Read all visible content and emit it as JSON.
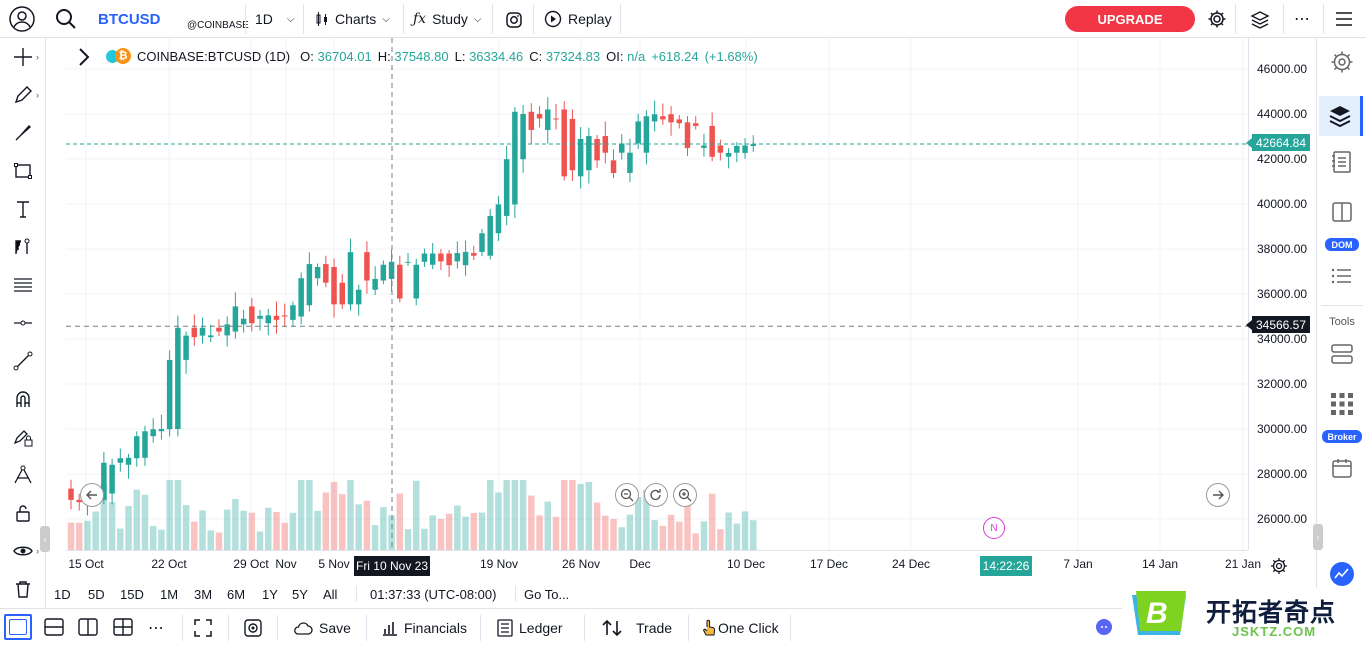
{
  "topbar": {
    "symbol": "BTCUSD",
    "exchange": "@COINBASE",
    "interval": "1D",
    "charts_label": "Charts",
    "study_label": "Study",
    "replay_label": "Replay",
    "upgrade_label": "UPGRADE"
  },
  "legend": {
    "symbol_full": "COINBASE:BTCUSD (1D)",
    "o_label": "O:",
    "o_value": "36704.01",
    "h_label": "H:",
    "h_value": "37548.80",
    "l_label": "L:",
    "l_value": "36334.46",
    "c_label": "C:",
    "c_value": "37324.83",
    "oi_label": "OI:",
    "oi_value": "n/a",
    "change": "+618.24",
    "change_pct": "(+1.68%)"
  },
  "price_axis": {
    "ticks": [
      "46000.00",
      "44000.00",
      "42000.00",
      "40000.00",
      "38000.00",
      "36000.00",
      "34000.00",
      "32000.00",
      "30000.00",
      "28000.00",
      "26000.00"
    ],
    "last_price": "42664.84",
    "crosshair_price": "34566.57"
  },
  "time_axis": {
    "ticks": [
      "15 Oct",
      "22 Oct",
      "29 Oct",
      "Nov",
      "5 Nov",
      "19 Nov",
      "26 Nov",
      "Dec",
      "10 Dec",
      "17 Dec",
      "24 Dec",
      "7 Jan",
      "14 Jan",
      "21 Jan"
    ],
    "crosshair_date": "Fri 10 Nov 23",
    "countdown": "14:22:26"
  },
  "right_sidebar": {
    "dom_badge": "DOM",
    "tools_label": "Tools",
    "broker_badge": "Broker"
  },
  "range_bar": {
    "ranges": [
      "1D",
      "5D",
      "15D",
      "1M",
      "3M",
      "6M",
      "1Y",
      "5Y",
      "All"
    ],
    "clock": "01:37:33 (UTC-08:00)",
    "goto": "Go To..."
  },
  "bottom_bar": {
    "save": "Save",
    "financials": "Financials",
    "ledger": "Ledger",
    "trade": "Trade",
    "one_click": "One Click"
  },
  "watermark": {
    "brand": "开拓者奇点",
    "domain": "JSKTZ.COM"
  },
  "colors": {
    "up": "#26a69a",
    "down": "#ef5350",
    "accent": "#2962ff",
    "upgrade": "#f23645"
  },
  "chart_data": {
    "type": "candlestick",
    "symbol": "COINBASE:BTCUSD",
    "interval": "1D",
    "ylim": [
      25000,
      47000
    ],
    "dates": [
      "2023-10-11",
      "2023-10-12",
      "2023-10-13",
      "2023-10-14",
      "2023-10-15",
      "2023-10-16",
      "2023-10-17",
      "2023-10-18",
      "2023-10-19",
      "2023-10-20",
      "2023-10-21",
      "2023-10-22",
      "2023-10-23",
      "2023-10-24",
      "2023-10-25",
      "2023-10-26",
      "2023-10-27",
      "2023-10-28",
      "2023-10-29",
      "2023-10-30",
      "2023-10-31",
      "2023-11-01",
      "2023-11-02",
      "2023-11-03",
      "2023-11-04",
      "2023-11-05",
      "2023-11-06",
      "2023-11-07",
      "2023-11-08",
      "2023-11-09",
      "2023-11-10",
      "2023-11-11",
      "2023-11-12",
      "2023-11-13",
      "2023-11-14",
      "2023-11-15",
      "2023-11-16",
      "2023-11-17",
      "2023-11-18",
      "2023-11-19",
      "2023-11-20",
      "2023-11-21",
      "2023-11-22",
      "2023-11-23",
      "2023-11-24",
      "2023-11-25",
      "2023-11-26",
      "2023-11-27",
      "2023-11-28",
      "2023-11-29",
      "2023-11-30",
      "2023-12-01",
      "2023-12-02",
      "2023-12-03",
      "2023-12-04",
      "2023-12-05",
      "2023-12-06",
      "2023-12-07",
      "2023-12-08",
      "2023-12-09",
      "2023-12-10",
      "2023-12-11",
      "2023-12-12",
      "2023-12-13",
      "2023-12-14",
      "2023-12-15",
      "2023-12-16",
      "2023-12-17",
      "2023-12-18",
      "2023-12-19",
      "2023-12-20",
      "2023-12-21",
      "2023-12-22",
      "2023-12-23",
      "2023-12-24",
      "2023-12-25",
      "2023-12-26",
      "2023-12-27",
      "2023-12-28",
      "2023-12-29",
      "2023-12-30",
      "2023-12-31",
      "2024-01-01",
      "2024-01-02"
    ],
    "open": [
      27350,
      26850,
      26750,
      26850,
      26850,
      27130,
      28500,
      28410,
      28700,
      28720,
      29680,
      29900,
      29990,
      30000,
      33070,
      34500,
      34150,
      34080,
      34500,
      34160,
      34330,
      34650,
      35450,
      34900,
      34700,
      35030,
      35050,
      34850,
      35000,
      35500,
      36700,
      37330,
      37200,
      36500,
      35540,
      35540,
      37860,
      36190,
      36600,
      36670,
      37300,
      37430,
      35800,
      37430,
      37300,
      37800,
      37800,
      37450,
      37280,
      37820,
      37870,
      37700,
      38700,
      39470,
      39980,
      41990,
      44100,
      44000,
      43290,
      43800,
      44200,
      43780,
      41230,
      41500,
      42890,
      43020,
      41940,
      42280,
      41380,
      42690,
      42280,
      43670,
      43900,
      43990,
      43760,
      43630,
      43590,
      42490,
      43470,
      42600,
      42100,
      42280,
      42270,
      42580
    ],
    "close": [
      26850,
      26750,
      26850,
      27130,
      28500,
      28410,
      28700,
      28720,
      29680,
      29900,
      29990,
      30000,
      33070,
      34500,
      34150,
      34080,
      34500,
      34160,
      34330,
      34650,
      35450,
      34900,
      34700,
      35030,
      35050,
      34850,
      35000,
      35500,
      36700,
      37330,
      37200,
      36500,
      35540,
      35540,
      37860,
      36190,
      36600,
      36670,
      37300,
      37430,
      35800,
      37430,
      37300,
      37800,
      37800,
      37450,
      37280,
      37820,
      37870,
      37700,
      38700,
      39470,
      39980,
      41990,
      44100,
      44000,
      43290,
      43800,
      44200,
      43780,
      41230,
      41500,
      42890,
      43020,
      41940,
      42280,
      41380,
      42690,
      42280,
      43670,
      43900,
      43990,
      43760,
      43630,
      43590,
      42490,
      43470,
      42600,
      42100,
      42280,
      42270,
      42580,
      42600,
      42664
    ],
    "volume_label": "Volume"
  }
}
